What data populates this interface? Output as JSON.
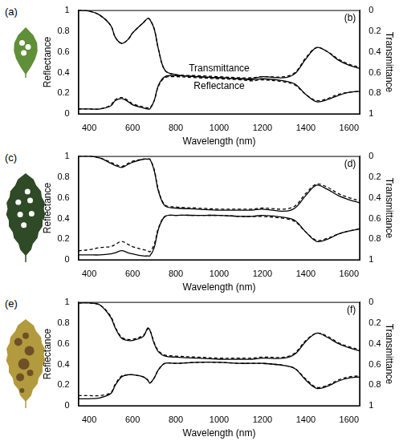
{
  "chart_data": [
    {
      "type": "line",
      "image_label": "(a)",
      "panel_label": "(b)",
      "xlabel": "Wavelength (nm)",
      "ylabel": "Reflectance",
      "y2label": "Transmittance",
      "xlim": [
        350,
        1650
      ],
      "xticks": [
        400,
        600,
        800,
        1000,
        1200,
        1400,
        1600
      ],
      "ylim": [
        0,
        1
      ],
      "yticks": [
        0,
        0.2,
        0.4,
        0.6,
        0.8,
        1
      ],
      "y2lim": [
        1,
        0
      ],
      "y2ticks": [
        0,
        0.2,
        0.4,
        0.6,
        0.8,
        1
      ],
      "grid": false,
      "annotations": [
        {
          "text": "Transmittance",
          "x": 1000,
          "y": 0.39
        },
        {
          "text": "Reflectance",
          "x": 1000,
          "y": 0.31
        }
      ],
      "x": [
        350,
        400,
        450,
        500,
        520,
        550,
        580,
        600,
        650,
        670,
        680,
        700,
        720,
        750,
        800,
        900,
        1000,
        1100,
        1150,
        1200,
        1300,
        1350,
        1400,
        1450,
        1500,
        1550,
        1600,
        1650
      ],
      "series": [
        {
          "name": "Reflectance",
          "color": "#000000",
          "line_style": "solid",
          "values": [
            0.05,
            0.05,
            0.05,
            0.08,
            0.13,
            0.15,
            0.12,
            0.09,
            0.06,
            0.05,
            0.05,
            0.13,
            0.28,
            0.36,
            0.37,
            0.36,
            0.35,
            0.34,
            0.33,
            0.34,
            0.32,
            0.29,
            0.19,
            0.12,
            0.14,
            0.18,
            0.21,
            0.22
          ]
        },
        {
          "name": "Reflectance",
          "color": "#000000",
          "line_style": "dashed",
          "values": [
            0.05,
            0.05,
            0.05,
            0.09,
            0.14,
            0.16,
            0.13,
            0.1,
            0.07,
            0.06,
            0.06,
            0.13,
            0.27,
            0.35,
            0.36,
            0.35,
            0.34,
            0.33,
            0.32,
            0.33,
            0.31,
            0.28,
            0.19,
            0.13,
            0.15,
            0.19,
            0.21,
            0.22
          ]
        },
        {
          "name": "Transmittance",
          "color": "#000000",
          "line_style": "solid",
          "axis": "y2",
          "values": [
            0.0,
            0.01,
            0.05,
            0.15,
            0.26,
            0.32,
            0.28,
            0.22,
            0.12,
            0.08,
            0.09,
            0.18,
            0.38,
            0.58,
            0.62,
            0.64,
            0.65,
            0.66,
            0.66,
            0.64,
            0.65,
            0.61,
            0.47,
            0.36,
            0.4,
            0.48,
            0.53,
            0.56
          ]
        },
        {
          "name": "Transmittance",
          "color": "#000000",
          "line_style": "dashed",
          "axis": "y2",
          "values": [
            0.0,
            0.01,
            0.05,
            0.15,
            0.26,
            0.32,
            0.28,
            0.22,
            0.12,
            0.08,
            0.09,
            0.18,
            0.38,
            0.58,
            0.62,
            0.63,
            0.64,
            0.65,
            0.65,
            0.64,
            0.64,
            0.6,
            0.46,
            0.36,
            0.4,
            0.47,
            0.52,
            0.55
          ]
        }
      ]
    },
    {
      "type": "line",
      "image_label": "(c)",
      "panel_label": "(d)",
      "xlabel": "Wavelength (nm)",
      "ylabel": "Reflectance",
      "y2label": "Transmittance",
      "xlim": [
        350,
        1650
      ],
      "xticks": [
        400,
        600,
        800,
        1000,
        1200,
        1400,
        1600
      ],
      "ylim": [
        0,
        1
      ],
      "yticks": [
        0,
        0.2,
        0.4,
        0.6,
        0.8,
        1
      ],
      "y2lim": [
        1,
        0
      ],
      "y2ticks": [
        0,
        0.2,
        0.4,
        0.6,
        0.8,
        1
      ],
      "grid": false,
      "x": [
        350,
        400,
        450,
        500,
        520,
        550,
        580,
        600,
        650,
        670,
        680,
        700,
        720,
        750,
        800,
        900,
        1000,
        1100,
        1150,
        1200,
        1300,
        1350,
        1400,
        1450,
        1500,
        1550,
        1600,
        1650
      ],
      "series": [
        {
          "name": "Reflectance",
          "color": "#000000",
          "line_style": "solid",
          "values": [
            0.05,
            0.05,
            0.05,
            0.06,
            0.07,
            0.09,
            0.07,
            0.06,
            0.04,
            0.04,
            0.04,
            0.12,
            0.3,
            0.42,
            0.43,
            0.43,
            0.43,
            0.42,
            0.42,
            0.43,
            0.41,
            0.38,
            0.27,
            0.18,
            0.2,
            0.25,
            0.28,
            0.3
          ]
        },
        {
          "name": "Reflectance",
          "color": "#000000",
          "line_style": "dashed",
          "values": [
            0.09,
            0.1,
            0.12,
            0.13,
            0.15,
            0.18,
            0.15,
            0.13,
            0.1,
            0.09,
            0.08,
            0.15,
            0.31,
            0.42,
            0.43,
            0.43,
            0.43,
            0.42,
            0.42,
            0.42,
            0.4,
            0.37,
            0.27,
            0.19,
            0.21,
            0.25,
            0.28,
            0.3
          ]
        },
        {
          "name": "Transmittance",
          "color": "#000000",
          "line_style": "solid",
          "axis": "y2",
          "values": [
            0.0,
            0.0,
            0.02,
            0.07,
            0.09,
            0.11,
            0.08,
            0.06,
            0.03,
            0.03,
            0.03,
            0.14,
            0.34,
            0.48,
            0.5,
            0.51,
            0.52,
            0.52,
            0.52,
            0.51,
            0.53,
            0.5,
            0.38,
            0.28,
            0.32,
            0.38,
            0.42,
            0.45
          ]
        },
        {
          "name": "Transmittance",
          "color": "#000000",
          "line_style": "dashed",
          "axis": "y2",
          "values": [
            0.0,
            0.0,
            0.02,
            0.06,
            0.08,
            0.1,
            0.07,
            0.05,
            0.03,
            0.03,
            0.03,
            0.13,
            0.33,
            0.47,
            0.49,
            0.5,
            0.51,
            0.51,
            0.51,
            0.5,
            0.51,
            0.48,
            0.36,
            0.27,
            0.3,
            0.36,
            0.4,
            0.43
          ]
        }
      ]
    },
    {
      "type": "line",
      "image_label": "(e)",
      "panel_label": "(f)",
      "xlabel": "Wavelength (nm)",
      "ylabel": "Reflectance",
      "y2label": "Transmittance",
      "xlim": [
        350,
        1650
      ],
      "xticks": [
        400,
        600,
        800,
        1000,
        1200,
        1400,
        1600
      ],
      "ylim": [
        0,
        1
      ],
      "yticks": [
        0,
        0.2,
        0.4,
        0.6,
        0.8,
        1
      ],
      "y2lim": [
        1,
        0
      ],
      "y2ticks": [
        0,
        0.2,
        0.4,
        0.6,
        0.8,
        1
      ],
      "grid": false,
      "x": [
        350,
        400,
        450,
        500,
        520,
        550,
        580,
        600,
        650,
        670,
        680,
        700,
        720,
        750,
        800,
        900,
        1000,
        1100,
        1150,
        1200,
        1300,
        1350,
        1400,
        1450,
        1500,
        1550,
        1600,
        1650
      ],
      "series": [
        {
          "name": "Reflectance",
          "color": "#000000",
          "line_style": "solid",
          "values": [
            0.07,
            0.07,
            0.08,
            0.12,
            0.2,
            0.28,
            0.3,
            0.3,
            0.28,
            0.25,
            0.22,
            0.27,
            0.35,
            0.41,
            0.41,
            0.42,
            0.42,
            0.41,
            0.41,
            0.41,
            0.39,
            0.36,
            0.25,
            0.17,
            0.19,
            0.24,
            0.27,
            0.28
          ]
        },
        {
          "name": "Reflectance",
          "color": "#000000",
          "line_style": "dashed",
          "values": [
            0.1,
            0.1,
            0.1,
            0.13,
            0.21,
            0.29,
            0.3,
            0.3,
            0.28,
            0.25,
            0.22,
            0.27,
            0.35,
            0.41,
            0.41,
            0.42,
            0.42,
            0.41,
            0.41,
            0.41,
            0.39,
            0.36,
            0.26,
            0.18,
            0.2,
            0.25,
            0.28,
            0.29
          ]
        },
        {
          "name": "Transmittance",
          "color": "#000000",
          "line_style": "solid",
          "axis": "y2",
          "values": [
            0.01,
            0.01,
            0.03,
            0.15,
            0.25,
            0.35,
            0.37,
            0.37,
            0.33,
            0.25,
            0.27,
            0.4,
            0.48,
            0.52,
            0.53,
            0.54,
            0.55,
            0.55,
            0.55,
            0.54,
            0.54,
            0.5,
            0.38,
            0.3,
            0.34,
            0.4,
            0.44,
            0.47
          ]
        },
        {
          "name": "Transmittance",
          "color": "#000000",
          "line_style": "dashed",
          "axis": "y2",
          "values": [
            0.01,
            0.01,
            0.03,
            0.14,
            0.24,
            0.34,
            0.36,
            0.36,
            0.32,
            0.26,
            0.27,
            0.39,
            0.47,
            0.51,
            0.52,
            0.53,
            0.54,
            0.54,
            0.54,
            0.53,
            0.53,
            0.49,
            0.37,
            0.3,
            0.33,
            0.39,
            0.43,
            0.46
          ]
        }
      ]
    }
  ]
}
